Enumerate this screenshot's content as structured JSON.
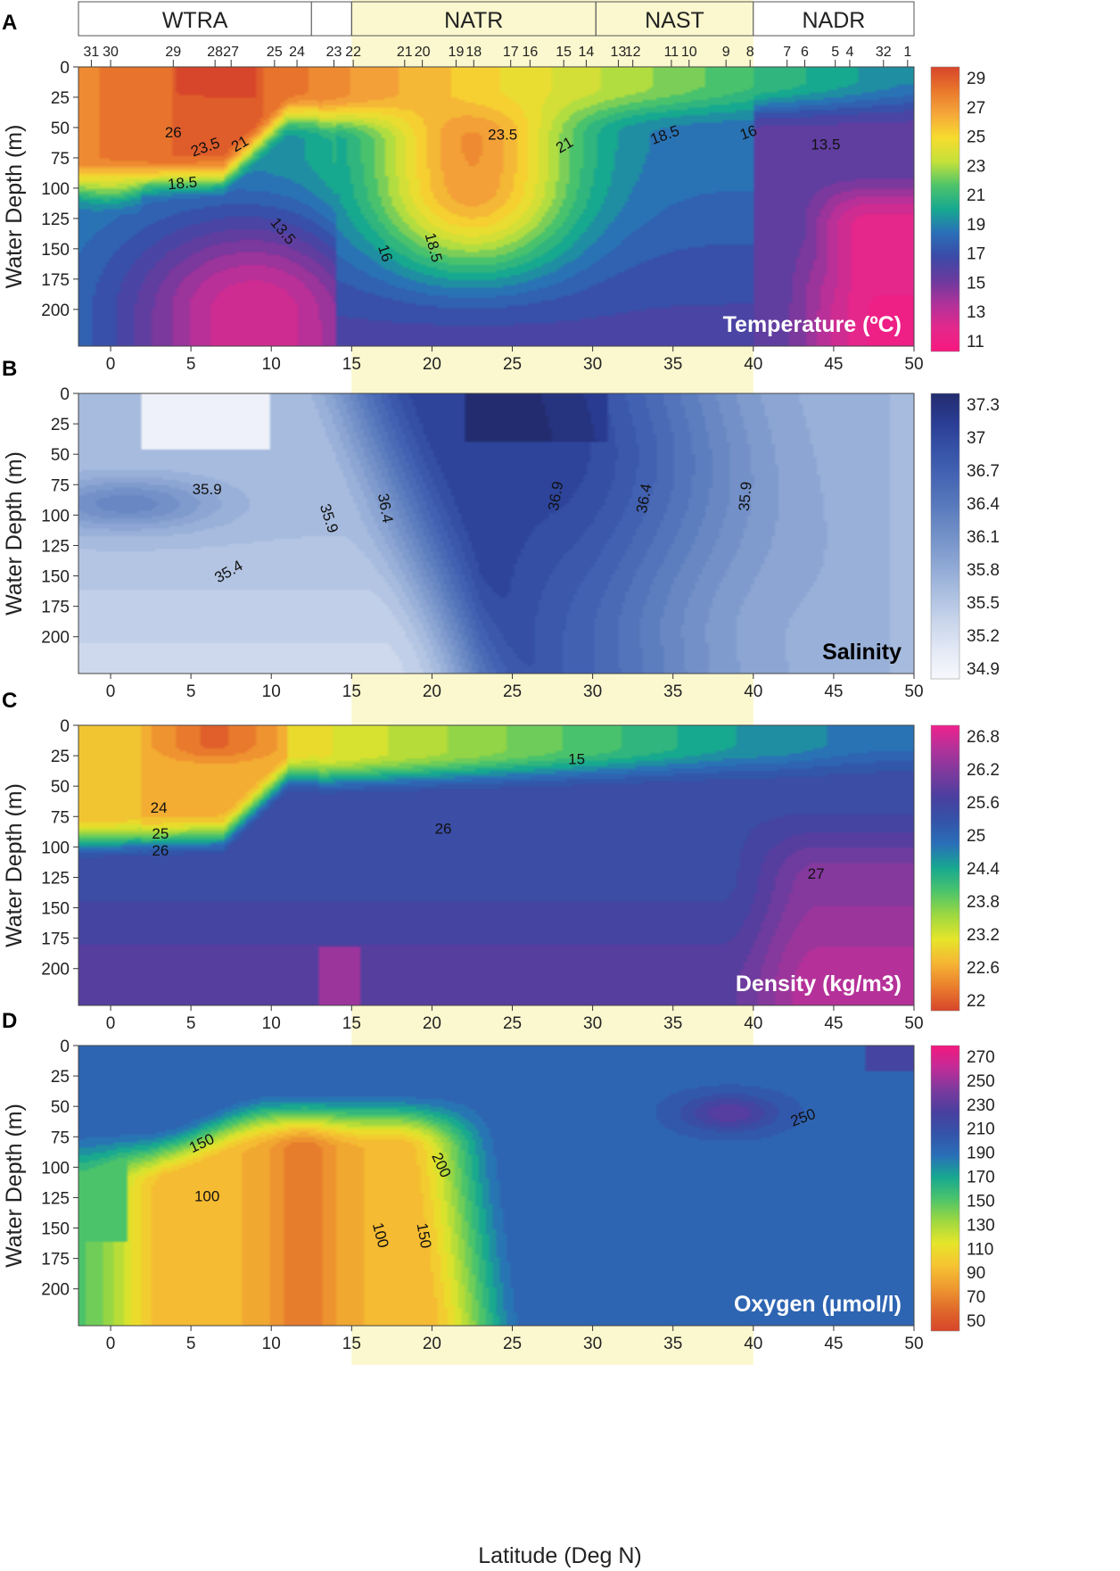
{
  "figure": {
    "x_axis_label": "Latitude (Deg N)",
    "y_axis_label": "Water Depth (m)",
    "provinces": [
      {
        "name": "WTRA",
        "lat_start": -2,
        "lat_end": 12.5
      },
      {
        "name": "",
        "lat_start": 12.5,
        "lat_end": 15
      },
      {
        "name": "NATR",
        "lat_start": 15,
        "lat_end": 30.2
      },
      {
        "name": "NAST",
        "lat_start": 30.2,
        "lat_end": 40
      },
      {
        "name": "NADR",
        "lat_start": 40,
        "lat_end": 50
      }
    ],
    "highlight_band": {
      "lat_start": 15,
      "lat_end": 40,
      "color": "#fbf8cf"
    },
    "stations": [
      {
        "label": "31",
        "lat": -1.2
      },
      {
        "label": "30",
        "lat": 0.0
      },
      {
        "label": "29",
        "lat": 3.9
      },
      {
        "label": "28",
        "lat": 6.5
      },
      {
        "label": "27",
        "lat": 7.5
      },
      {
        "label": "25",
        "lat": 10.2
      },
      {
        "label": "24",
        "lat": 11.6
      },
      {
        "label": "23",
        "lat": 13.9
      },
      {
        "label": "22",
        "lat": 15.1
      },
      {
        "label": "21",
        "lat": 18.3
      },
      {
        "label": "20",
        "lat": 19.4
      },
      {
        "label": "19",
        "lat": 21.5
      },
      {
        "label": "18",
        "lat": 22.6
      },
      {
        "label": "17",
        "lat": 24.9
      },
      {
        "label": "16",
        "lat": 26.1
      },
      {
        "label": "15",
        "lat": 28.2
      },
      {
        "label": "14",
        "lat": 29.6
      },
      {
        "label": "13",
        "lat": 31.6
      },
      {
        "label": "12",
        "lat": 32.5
      },
      {
        "label": "11",
        "lat": 34.9
      },
      {
        "label": "10",
        "lat": 36.0
      },
      {
        "label": "9",
        "lat": 38.3
      },
      {
        "label": "8",
        "lat": 39.8
      },
      {
        "label": "7",
        "lat": 42.1
      },
      {
        "label": "6",
        "lat": 43.2
      },
      {
        "label": "5",
        "lat": 45.1
      },
      {
        "label": "4",
        "lat": 46.0
      },
      {
        "label": "32",
        "lat": 48.1
      },
      {
        "label": "1",
        "lat": 49.6
      }
    ]
  },
  "chart_data": [
    {
      "id": "A",
      "panel_label": "A",
      "type": "heatmap",
      "title": "Temperature (ºC)",
      "title_color": "#ffffff",
      "x_range": [
        -2,
        50
      ],
      "x_ticks": [
        0,
        5,
        10,
        15,
        20,
        25,
        30,
        35,
        40,
        45,
        50
      ],
      "y_range": [
        0,
        220
      ],
      "y_ticks": [
        0,
        25,
        50,
        75,
        100,
        125,
        150,
        175,
        200
      ],
      "colorbar": {
        "ticks": [
          "29",
          "27",
          "25",
          "23",
          "21",
          "19",
          "17",
          "15",
          "13",
          "11"
        ],
        "colors": [
          "#d7452a",
          "#e9772c",
          "#f5a83a",
          "#f6dc2e",
          "#c4e13a",
          "#4dc46a",
          "#17a890",
          "#2a6fb8",
          "#3b4aa7",
          "#6b3a9e",
          "#b0329a",
          "#e3288c",
          "#f7187f"
        ]
      },
      "contour_labels": [
        {
          "text": "26",
          "lat": 3.9,
          "depth": 58,
          "angle": 0
        },
        {
          "text": "23.5",
          "lat": 6,
          "depth": 70,
          "angle": -20
        },
        {
          "text": "21",
          "lat": 8.2,
          "depth": 67,
          "angle": -30
        },
        {
          "text": "18.5",
          "lat": 4.5,
          "depth": 100,
          "angle": -5
        },
        {
          "text": "13.5",
          "lat": 10.5,
          "depth": 138,
          "angle": 50
        },
        {
          "text": "16",
          "lat": 16.8,
          "depth": 155,
          "angle": 72
        },
        {
          "text": "18.5",
          "lat": 19.8,
          "depth": 150,
          "angle": 75
        },
        {
          "text": "23.5",
          "lat": 24.4,
          "depth": 60,
          "angle": 0
        },
        {
          "text": "21",
          "lat": 28.4,
          "depth": 68,
          "angle": -30
        },
        {
          "text": "18.5",
          "lat": 34.6,
          "depth": 60,
          "angle": -20
        },
        {
          "text": "16",
          "lat": 39.8,
          "depth": 58,
          "angle": -20
        },
        {
          "text": "13.5",
          "lat": 44.5,
          "depth": 68,
          "angle": 0
        }
      ]
    },
    {
      "id": "B",
      "panel_label": "B",
      "type": "heatmap",
      "title": "Salinity",
      "title_color": "#000000",
      "x_range": [
        -2,
        50
      ],
      "x_ticks": [
        0,
        5,
        10,
        15,
        20,
        25,
        30,
        35,
        40,
        45,
        50
      ],
      "y_range": [
        0,
        220
      ],
      "y_ticks": [
        0,
        25,
        50,
        75,
        100,
        125,
        150,
        175,
        200
      ],
      "colorbar": {
        "ticks": [
          "37.3",
          "37",
          "36.7",
          "36.4",
          "36.1",
          "35.8",
          "35.5",
          "35.2",
          "34.9"
        ],
        "colors": [
          "#232c6e",
          "#2a3c93",
          "#3653a8",
          "#4766b4",
          "#5a7bbd",
          "#7391c8",
          "#8ea7d4",
          "#abbfe0",
          "#c9d5eb",
          "#e3e9f5",
          "#f7f8fc"
        ]
      },
      "contour_labels": [
        {
          "text": "35.9",
          "lat": 6,
          "depth": 83,
          "angle": 0
        },
        {
          "text": "35.9",
          "lat": 13.3,
          "depth": 104,
          "angle": 72
        },
        {
          "text": "36.4",
          "lat": 16.8,
          "depth": 95,
          "angle": 80
        },
        {
          "text": "35.4",
          "lat": 7.5,
          "depth": 150,
          "angle": -30
        },
        {
          "text": "36.9",
          "lat": 28,
          "depth": 85,
          "angle": -80
        },
        {
          "text": "36.4",
          "lat": 33.5,
          "depth": 87,
          "angle": -80
        },
        {
          "text": "35.9",
          "lat": 39.8,
          "depth": 85,
          "angle": -85
        }
      ]
    },
    {
      "id": "C",
      "panel_label": "C",
      "type": "heatmap",
      "title": "Density (kg/m3)",
      "title_color": "#ffffff",
      "x_range": [
        -2,
        50
      ],
      "x_ticks": [
        0,
        5,
        10,
        15,
        20,
        25,
        30,
        35,
        40,
        45,
        50
      ],
      "y_range": [
        0,
        220
      ],
      "y_ticks": [
        0,
        25,
        50,
        75,
        100,
        125,
        150,
        175,
        200
      ],
      "colorbar": {
        "ticks": [
          "26.8",
          "26.2",
          "25.6",
          "25",
          "24.4",
          "23.8",
          "23.2",
          "22.6",
          "22"
        ],
        "colors": [
          "#f0228c",
          "#b0329a",
          "#7d3a9d",
          "#4a3f9f",
          "#3453a8",
          "#2a6fb8",
          "#17a890",
          "#4dc46a",
          "#9fd840",
          "#e6e52a",
          "#f6b534",
          "#ea7e2d",
          "#d7452a"
        ]
      },
      "contour_labels": [
        {
          "text": "15",
          "lat": 29,
          "depth": 32,
          "angle": 0
        },
        {
          "text": "24",
          "lat": 3,
          "depth": 72,
          "angle": 0
        },
        {
          "text": "25",
          "lat": 3.1,
          "depth": 93,
          "angle": 0
        },
        {
          "text": "26",
          "lat": 3.1,
          "depth": 107,
          "angle": 0
        },
        {
          "text": "26",
          "lat": 20.7,
          "depth": 89,
          "angle": 0
        },
        {
          "text": "27",
          "lat": 43.9,
          "depth": 126,
          "angle": 0
        }
      ]
    },
    {
      "id": "D",
      "panel_label": "D",
      "type": "heatmap",
      "title": "Oxygen (µmol/l)",
      "title_color": "#ffffff",
      "x_range": [
        -2,
        50
      ],
      "x_ticks": [
        0,
        5,
        10,
        15,
        20,
        25,
        30,
        35,
        40,
        45,
        50
      ],
      "y_range": [
        0,
        220
      ],
      "y_ticks": [
        0,
        25,
        50,
        75,
        100,
        125,
        150,
        175,
        200
      ],
      "colorbar": {
        "ticks": [
          "270",
          "250",
          "230",
          "210",
          "190",
          "170",
          "150",
          "130",
          "110",
          "90",
          "70",
          "50"
        ],
        "colors": [
          "#f4187e",
          "#c12b97",
          "#7d3a9d",
          "#4a3f9f",
          "#3453a8",
          "#2a6fb8",
          "#17a890",
          "#4dc46a",
          "#9fd840",
          "#e6e52a",
          "#f6c432",
          "#ef9a30",
          "#e06a2b",
          "#d7452a"
        ]
      },
      "contour_labels": [
        {
          "text": "150",
          "lat": 5.8,
          "depth": 84,
          "angle": -25
        },
        {
          "text": "100",
          "lat": 6,
          "depth": 128,
          "angle": 0
        },
        {
          "text": "200",
          "lat": 20.3,
          "depth": 100,
          "angle": 65
        },
        {
          "text": "100",
          "lat": 16.5,
          "depth": 157,
          "angle": 75
        },
        {
          "text": "150",
          "lat": 19.2,
          "depth": 157,
          "angle": 80
        },
        {
          "text": "250",
          "lat": 43.2,
          "depth": 63,
          "angle": -20
        }
      ]
    }
  ]
}
